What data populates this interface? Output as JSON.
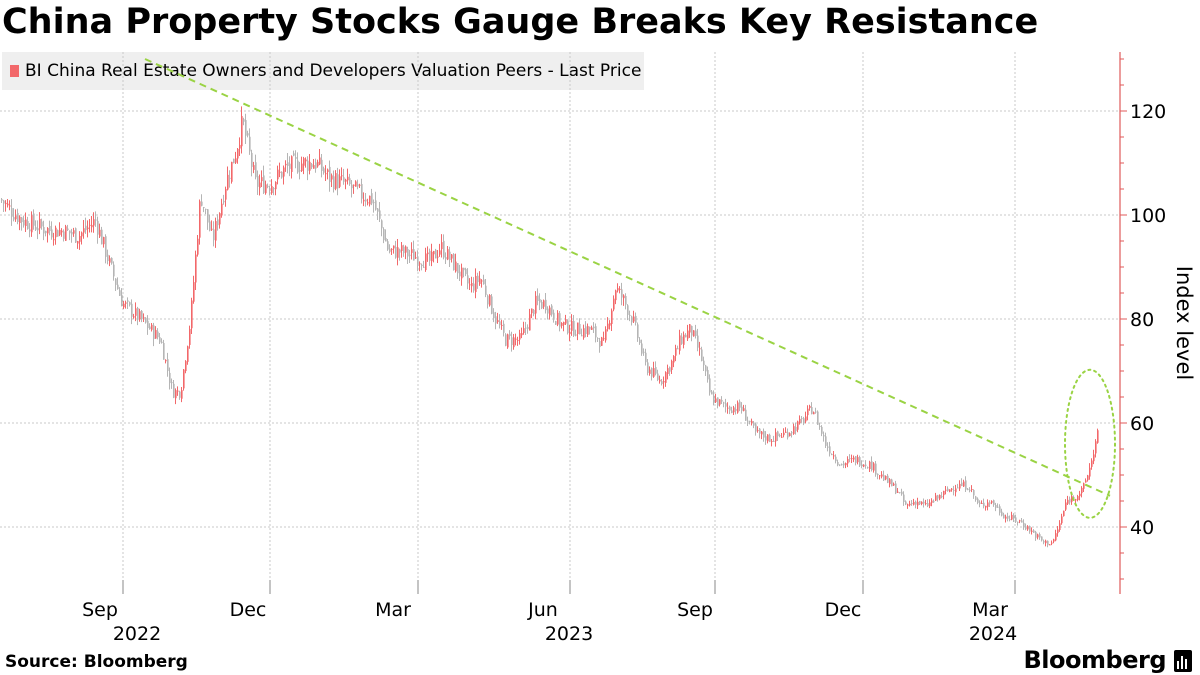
{
  "chart_data": {
    "type": "candlestick",
    "title": "China Property Stocks Gauge Breaks Key Resistance",
    "series_name": "BI China Real Estate Owners and Developers Valuation Peers - Last Price",
    "ylabel": "Index level",
    "ylim": [
      28,
      132
    ],
    "yticks": [
      40,
      60,
      80,
      100,
      120
    ],
    "x_months": [
      "Sep",
      "Dec",
      "Mar",
      "Jun",
      "Sep",
      "Dec",
      "Mar"
    ],
    "x_years": [
      "2022",
      "2023",
      "2024"
    ],
    "series_points": [
      [
        0,
        103
      ],
      [
        10,
        101
      ],
      [
        22,
        99
      ],
      [
        35,
        98
      ],
      [
        50,
        97
      ],
      [
        62,
        97
      ],
      [
        78,
        96
      ],
      [
        95,
        99
      ],
      [
        110,
        90
      ],
      [
        122,
        83
      ],
      [
        140,
        80
      ],
      [
        160,
        76
      ],
      [
        172,
        66
      ],
      [
        180,
        66
      ],
      [
        190,
        80
      ],
      [
        200,
        104
      ],
      [
        212,
        95
      ],
      [
        225,
        106
      ],
      [
        235,
        112
      ],
      [
        242,
        118
      ],
      [
        255,
        106
      ],
      [
        270,
        106
      ],
      [
        285,
        109
      ],
      [
        300,
        110
      ],
      [
        315,
        110
      ],
      [
        330,
        107
      ],
      [
        345,
        106
      ],
      [
        360,
        104
      ],
      [
        372,
        103
      ],
      [
        388,
        93
      ],
      [
        400,
        93
      ],
      [
        415,
        92
      ],
      [
        430,
        91
      ],
      [
        440,
        94
      ],
      [
        455,
        90
      ],
      [
        470,
        86
      ],
      [
        480,
        88
      ],
      [
        495,
        80
      ],
      [
        505,
        76
      ],
      [
        520,
        76
      ],
      [
        535,
        83
      ],
      [
        545,
        83
      ],
      [
        560,
        79
      ],
      [
        575,
        78
      ],
      [
        590,
        78
      ],
      [
        603,
        75
      ],
      [
        615,
        86
      ],
      [
        622,
        84
      ],
      [
        632,
        80
      ],
      [
        645,
        71
      ],
      [
        660,
        68
      ],
      [
        672,
        72
      ],
      [
        680,
        76
      ],
      [
        690,
        78
      ],
      [
        700,
        73
      ],
      [
        710,
        65
      ],
      [
        725,
        63
      ],
      [
        740,
        63
      ],
      [
        755,
        58
      ],
      [
        770,
        57
      ],
      [
        785,
        58
      ],
      [
        800,
        60
      ],
      [
        812,
        63
      ],
      [
        825,
        56
      ],
      [
        840,
        52
      ],
      [
        855,
        53
      ],
      [
        870,
        52
      ],
      [
        885,
        49
      ],
      [
        897,
        47
      ],
      [
        905,
        44
      ],
      [
        915,
        45
      ],
      [
        925,
        44
      ],
      [
        940,
        46
      ],
      [
        955,
        48
      ],
      [
        968,
        48
      ],
      [
        978,
        44
      ],
      [
        990,
        45
      ],
      [
        1005,
        42
      ],
      [
        1020,
        41
      ],
      [
        1032,
        39
      ],
      [
        1043,
        37
      ],
      [
        1052,
        37
      ],
      [
        1058,
        40
      ],
      [
        1066,
        45
      ],
      [
        1074,
        46
      ],
      [
        1082,
        47
      ],
      [
        1090,
        52
      ],
      [
        1097,
        58
      ]
    ],
    "annotations": {
      "trendline": {
        "style": "dashed",
        "color": "#9ad344",
        "from": [
          145,
          130
        ],
        "to": [
          1110,
          46
        ]
      },
      "highlight": {
        "style": "dotted ellipse",
        "color": "#9ad344",
        "center": [
          1090,
          56
        ]
      }
    }
  },
  "footer": {
    "source": "Source: Bloomberg",
    "brand": "Bloomberg"
  },
  "colors": {
    "up": "#f2686a",
    "down": "#b5b5b5",
    "axis": "#e05a5a",
    "grid": "#c8c8c8",
    "trend": "#9ad344"
  }
}
